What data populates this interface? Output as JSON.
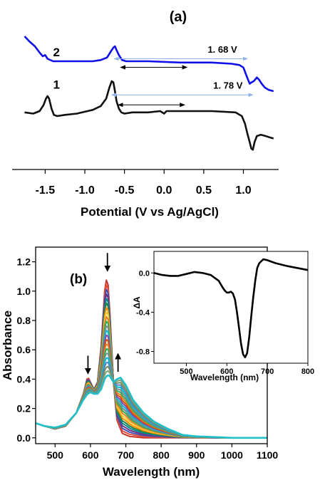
{
  "chart_data": [
    {
      "type": "line",
      "panel_label": "(a)",
      "xlabel": "Potential (V vs Ag/AgCl)",
      "ylabel": "",
      "xlim": [
        -1.8,
        1.4
      ],
      "xticks": [
        "-1.5",
        "-1.0",
        "-0.5",
        "0.0",
        "0.5",
        "1.0"
      ],
      "grid": false,
      "series": [
        {
          "name": "2",
          "color": "#1010e8",
          "x": [
            -1.76,
            -1.7,
            -1.63,
            -1.57,
            -1.53,
            -1.5,
            -1.47,
            -1.4,
            -1.3,
            -1.1,
            -0.9,
            -0.8,
            -0.72,
            -0.67,
            -0.64,
            -0.62,
            -0.6,
            -0.57,
            -0.53,
            -0.48,
            -0.4,
            -0.2,
            0.2,
            0.6,
            0.85,
            0.95,
            1.0,
            1.03,
            1.06,
            1.08,
            1.1,
            1.13,
            1.17,
            1.2,
            1.23,
            1.27,
            1.32,
            1.38
          ],
          "values": [
            0.08,
            0.04,
            0.0,
            -0.05,
            -0.08,
            -0.07,
            -0.1,
            -0.12,
            -0.12,
            -0.12,
            -0.12,
            -0.11,
            -0.09,
            -0.04,
            -0.01,
            0.0,
            -0.03,
            -0.07,
            -0.11,
            -0.12,
            -0.12,
            -0.12,
            -0.13,
            -0.13,
            -0.14,
            -0.15,
            -0.17,
            -0.22,
            -0.27,
            -0.3,
            -0.29,
            -0.28,
            -0.25,
            -0.27,
            -0.3,
            -0.33,
            -0.35,
            -0.36
          ],
          "label_x": -1.4,
          "label_y": -0.08
        },
        {
          "name": "1",
          "color": "#111111",
          "x": [
            -1.76,
            -1.65,
            -1.57,
            -1.52,
            -1.49,
            -1.47,
            -1.45,
            -1.42,
            -1.39,
            -1.35,
            -1.25,
            -1.1,
            -0.9,
            -0.8,
            -0.73,
            -0.69,
            -0.66,
            -0.64,
            -0.62,
            -0.6,
            -0.57,
            -0.54,
            -0.5,
            -0.4,
            -0.2,
            -0.05,
            0.0,
            0.03,
            0.2,
            0.6,
            0.9,
            0.98,
            1.02,
            1.05,
            1.08,
            1.1,
            1.12,
            1.14,
            1.17,
            1.22,
            1.28,
            1.33,
            1.38
          ],
          "values": [
            -0.53,
            -0.54,
            -0.52,
            -0.47,
            -0.42,
            -0.4,
            -0.42,
            -0.5,
            -0.55,
            -0.56,
            -0.55,
            -0.54,
            -0.51,
            -0.48,
            -0.42,
            -0.33,
            -0.28,
            -0.29,
            -0.36,
            -0.44,
            -0.5,
            -0.53,
            -0.54,
            -0.53,
            -0.53,
            -0.52,
            -0.54,
            -0.52,
            -0.52,
            -0.52,
            -0.53,
            -0.56,
            -0.62,
            -0.7,
            -0.77,
            -0.82,
            -0.83,
            -0.77,
            -0.72,
            -0.71,
            -0.72,
            -0.73,
            -0.74
          ],
          "label_x": -1.4,
          "label_y": -0.34
        }
      ],
      "annotations": [
        {
          "text": "1. 68 V",
          "x": -0.63,
          "x2": 1.05,
          "y": -0.1,
          "label_x": 0.55,
          "label_y": -0.05
        },
        {
          "text": "1. 78 V",
          "x": -0.66,
          "x2": 1.12,
          "y": -0.39,
          "label_x": 0.62,
          "label_y": -0.34
        }
      ]
    },
    {
      "type": "line",
      "panel_label": "(b)",
      "xlabel": "Wavelength (nm)",
      "ylabel": "Absorbance",
      "xlim": [
        445,
        1100
      ],
      "ylim": [
        -0.04,
        1.3
      ],
      "xticks": [
        500,
        600,
        700,
        800,
        900,
        1000,
        1100
      ],
      "yticks": [
        0.0,
        0.2,
        0.4,
        0.6,
        0.8,
        1.0,
        1.2
      ],
      "grid": false,
      "spectra_count": 22,
      "start_colors": [
        "#c0392b",
        "#e74c3c",
        "#3f51b5",
        "#6c3483",
        "#008b8b",
        "#1e8449",
        "#ff8c00",
        "#f4d03f"
      ],
      "mid_colors": [
        "#e67e22",
        "#27ae60",
        "#7f8c8d",
        "#00bcd4",
        "#8e44ad",
        "#d35400"
      ],
      "end_color": "#20c0c8",
      "band_start": {
        "x": [
          445,
          470,
          500,
          530,
          560,
          580,
          592,
          600,
          610,
          620,
          630,
          640,
          648,
          655,
          665,
          675,
          690,
          710,
          750,
          800,
          900,
          1100
        ],
        "values": [
          0.1,
          0.08,
          0.06,
          0.08,
          0.17,
          0.3,
          0.42,
          0.38,
          0.33,
          0.38,
          0.62,
          1.0,
          1.12,
          0.85,
          0.38,
          0.12,
          0.03,
          0.01,
          0.0,
          0.0,
          0.0,
          0.0
        ]
      },
      "band_end": {
        "x": [
          445,
          470,
          500,
          530,
          560,
          580,
          592,
          600,
          610,
          620,
          630,
          640,
          648,
          655,
          665,
          675,
          685,
          700,
          720,
          750,
          780,
          820,
          860,
          900,
          1000,
          1100
        ],
        "values": [
          0.1,
          0.08,
          0.07,
          0.09,
          0.17,
          0.26,
          0.3,
          0.31,
          0.3,
          0.3,
          0.33,
          0.4,
          0.43,
          0.42,
          0.38,
          0.4,
          0.41,
          0.36,
          0.26,
          0.17,
          0.11,
          0.06,
          0.02,
          0.01,
          0.0,
          0.0
        ]
      },
      "arrows": [
        {
          "dir": "down",
          "x": 593,
          "y_top": 0.56,
          "y_tip": 0.44
        },
        {
          "dir": "down",
          "x": 648,
          "y_top": 1.26,
          "y_tip": 1.14
        },
        {
          "dir": "up",
          "x": 678,
          "y_top": 0.57,
          "y_tip": 0.45
        }
      ],
      "inset": {
        "type": "line",
        "xlabel": "Wavelength (nm)",
        "ylabel": "ΔA",
        "xlim": [
          420,
          800
        ],
        "ylim": [
          -0.92,
          0.22
        ],
        "xticks": [
          500,
          600,
          700,
          800
        ],
        "yticks": [
          0.0,
          -0.4,
          -0.8
        ],
        "ytick_labels": [
          "0.0",
          "-0.4",
          "-0.8"
        ],
        "color": "#000000",
        "x": [
          420,
          440,
          460,
          480,
          500,
          520,
          540,
          560,
          580,
          590,
          595,
          600,
          605,
          610,
          615,
          620,
          625,
          630,
          635,
          640,
          645,
          650,
          655,
          660,
          665,
          670,
          675,
          680,
          690,
          700,
          720,
          750,
          800
        ],
        "values": [
          0.0,
          -0.02,
          -0.03,
          -0.03,
          -0.01,
          0.01,
          0.0,
          -0.02,
          -0.08,
          -0.15,
          -0.18,
          -0.2,
          -0.2,
          -0.19,
          -0.21,
          -0.27,
          -0.4,
          -0.56,
          -0.72,
          -0.83,
          -0.86,
          -0.82,
          -0.66,
          -0.45,
          -0.25,
          -0.08,
          0.05,
          0.1,
          0.14,
          0.13,
          0.1,
          0.07,
          0.03
        ]
      }
    }
  ]
}
